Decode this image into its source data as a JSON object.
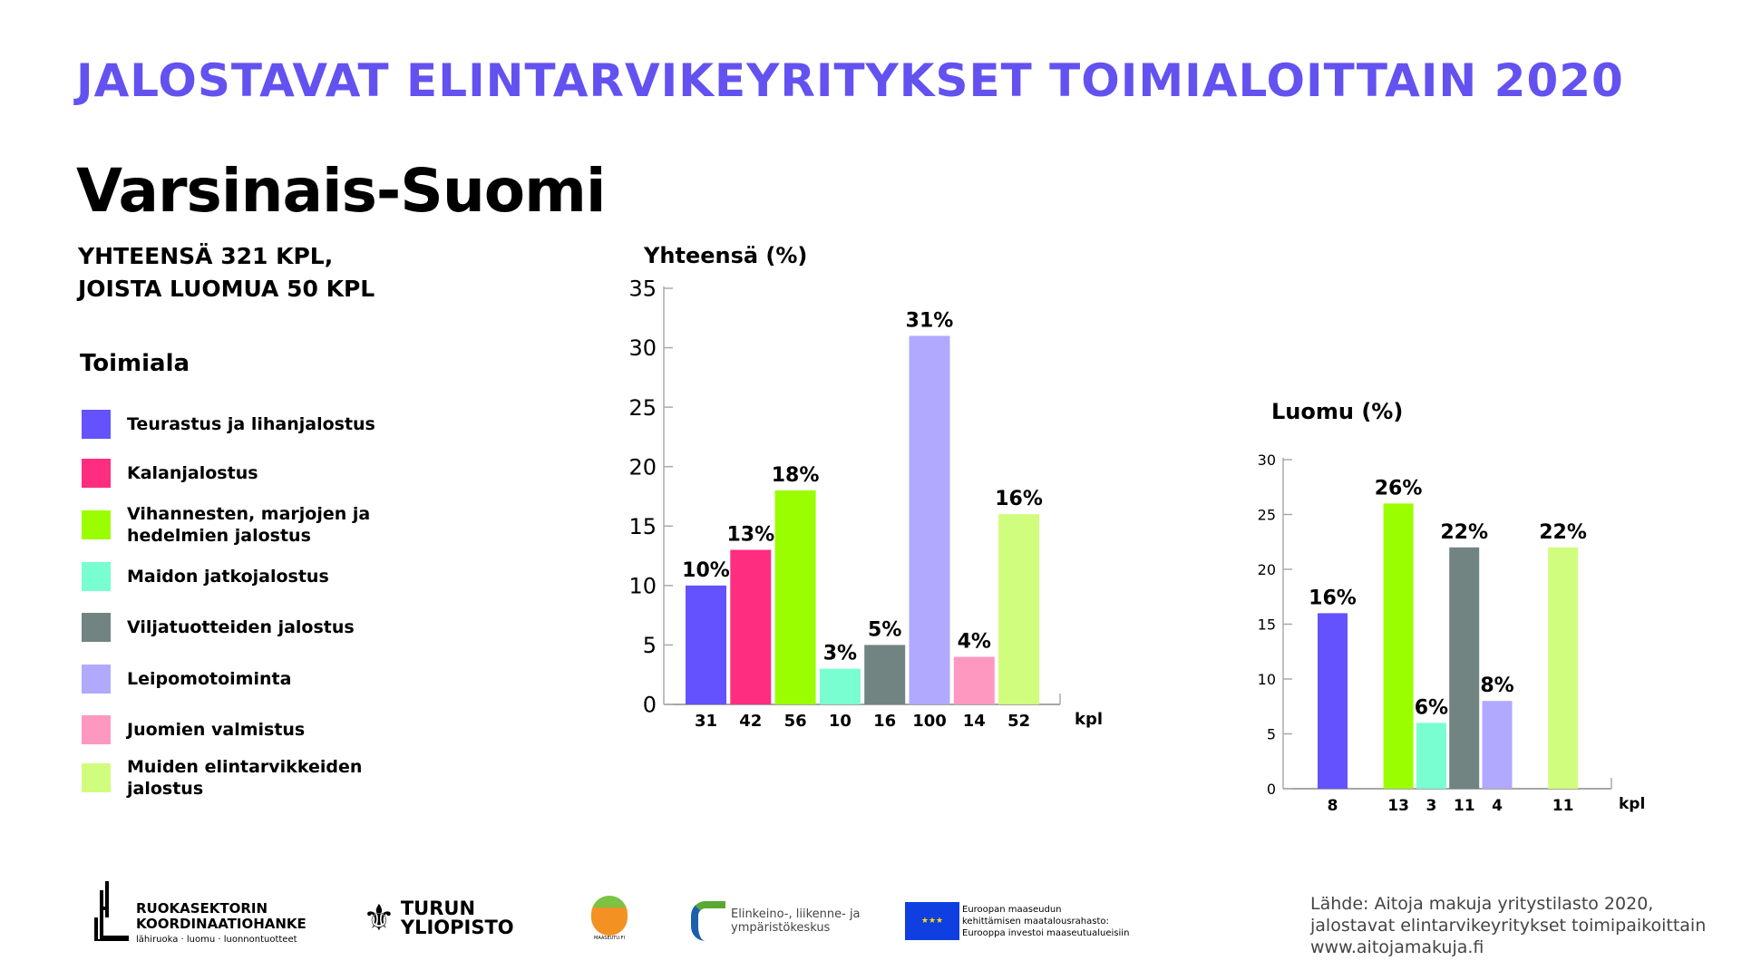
{
  "header": {
    "title": "JALOSTAVAT ELINTARVIKEYRITYKSET TOIMIALOITTAIN 2020",
    "region": "Varsinais-Suomi",
    "summary_line1": "YHTEENSÄ 321 KPL,",
    "summary_line2": "JOISTA LUOMUA 50 KPL"
  },
  "legend": {
    "title": "Toimiala",
    "items": [
      {
        "label": "Teurastus ja lihanjalostus",
        "color": "#6352fe"
      },
      {
        "label": "Kalanjalostus",
        "color": "#fe2d80"
      },
      {
        "label": "Vihannesten, marjojen ja hedelmien jalostus",
        "color": "#9bfe00"
      },
      {
        "label": "Maidon jatkojalostus",
        "color": "#78fed0"
      },
      {
        "label": "Viljatuotteiden jalostus",
        "color": "#718482"
      },
      {
        "label": "Leipomotoiminta",
        "color": "#b1a9fd"
      },
      {
        "label": "Juomien valmistus",
        "color": "#fe98c1"
      },
      {
        "label": "Muiden elintarvikkeiden jalostus",
        "color": "#d1fd7e"
      }
    ]
  },
  "chart_data": [
    {
      "type": "bar",
      "title": "Yhteensä (%)",
      "ylim": [
        0,
        35
      ],
      "yticks": [
        0,
        5,
        10,
        15,
        20,
        25,
        30,
        35
      ],
      "xunit": "kpl",
      "categories": [
        "31",
        "42",
        "56",
        "10",
        "16",
        "100",
        "14",
        "52"
      ],
      "values": [
        10,
        13,
        18,
        3,
        5,
        31,
        4,
        16
      ],
      "labels": [
        "10%",
        "13%",
        "18%",
        "3%",
        "5%",
        "31%",
        "4%",
        "16%"
      ]
    },
    {
      "type": "bar",
      "title": "Luomu (%)",
      "ylim": [
        0,
        30
      ],
      "yticks": [
        0,
        5,
        10,
        15,
        20,
        25,
        30
      ],
      "xunit": "kpl",
      "categories": [
        "8",
        "",
        "13",
        "3",
        "11",
        "4",
        "",
        "11"
      ],
      "values": [
        16,
        0,
        26,
        6,
        22,
        8,
        0,
        22
      ],
      "labels": [
        "16%",
        "",
        "26%",
        "6%",
        "22%",
        "8%",
        "",
        "22%"
      ]
    }
  ],
  "footer": {
    "logo1": {
      "line1": "RUOKASEKTORIN",
      "line2": "KOORDINAATIOHANKE",
      "line3": "lähiruoka · luomu · luonnontuotteet"
    },
    "logo2": {
      "line1": "TURUN",
      "line2": "YLIOPISTO"
    },
    "logo3": {
      "text": "MAASEUTU.FI"
    },
    "logo4": {
      "line1": "Elinkeino-, liikenne- ja",
      "line2": "ympäristökeskus"
    },
    "logo5": {
      "line1": "Euroopan maaseudun",
      "line2": "kehittämisen maatalousrahasto:",
      "line3": "Eurooppa investoi maaseutualueisiin"
    },
    "source": {
      "line1": "Lähde: Aitoja makuja yritystilasto 2020,",
      "line2": "jalostavat elintarvikeyritykset toimipaikoittain",
      "line3": "www.aitojamakuja.fi"
    }
  }
}
